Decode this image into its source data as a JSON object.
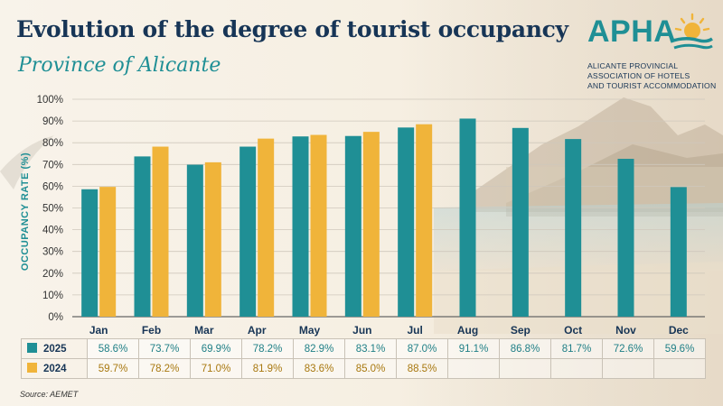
{
  "header": {
    "title": "Evolution of the degree of tourist occupancy",
    "subtitle": "Province of Alicante"
  },
  "logo": {
    "text": "APHA",
    "org_lines": [
      "ALICANTE PROVINCIAL",
      "ASSOCIATION OF HOTELS",
      "AND TOURIST ACCOMMODATION"
    ]
  },
  "source": "Source: AEMET",
  "colors": {
    "teal": "#1f8f95",
    "gold": "#f0b43a",
    "navy": "#173556"
  },
  "chart_data": {
    "type": "bar",
    "title": "Evolution of the degree of tourist occupancy",
    "subtitle": "Province of Alicante",
    "ylabel": "OCCUPANCY RATE (%)",
    "xlabel": "",
    "ylim": [
      0,
      100
    ],
    "yticks": [
      0,
      10,
      20,
      30,
      40,
      50,
      60,
      70,
      80,
      90,
      100
    ],
    "ytick_labels": [
      "0%",
      "10%",
      "20%",
      "30%",
      "40%",
      "50%",
      "60%",
      "70%",
      "80%",
      "90%",
      "100%"
    ],
    "categories": [
      "Jan",
      "Feb",
      "Mar",
      "Apr",
      "May",
      "Jun",
      "Jul",
      "Aug",
      "Sep",
      "Oct",
      "Nov",
      "Dec"
    ],
    "grid": true,
    "legend": "bottom-table",
    "series": [
      {
        "name": "2025",
        "color": "#1f8f95",
        "values": [
          58.6,
          73.7,
          69.9,
          78.2,
          82.9,
          83.1,
          87.0,
          91.1,
          86.8,
          81.7,
          72.6,
          59.6
        ],
        "labels": [
          "58.6%",
          "73.7%",
          "69.9%",
          "78.2%",
          "82.9%",
          "83.1%",
          "87.0%",
          "91.1%",
          "86.8%",
          "81.7%",
          "72.6%",
          "59.6%"
        ]
      },
      {
        "name": "2024",
        "color": "#f0b43a",
        "values": [
          59.7,
          78.2,
          71.0,
          81.9,
          83.6,
          85.0,
          88.5,
          null,
          null,
          null,
          null,
          null
        ],
        "labels": [
          "59.7%",
          "78.2%",
          "71.0%",
          "81.9%",
          "83.6%",
          "85.0%",
          "88.5%",
          "",
          "",
          "",
          "",
          ""
        ]
      }
    ]
  }
}
